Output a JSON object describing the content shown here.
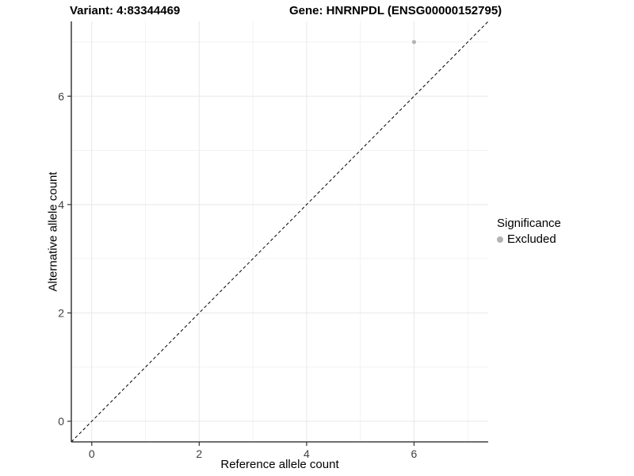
{
  "titles": {
    "variant": "Variant: 4:83344469",
    "gene": "Gene: HNRNPDL (ENSG00000152795)"
  },
  "chart_data": {
    "type": "scatter",
    "xlabel": "Reference allele count",
    "ylabel": "Alternative allele count",
    "xlim": [
      -0.38,
      7.38
    ],
    "ylim": [
      -0.38,
      7.38
    ],
    "xticks": [
      0,
      2,
      4,
      6
    ],
    "yticks": [
      0,
      2,
      4,
      6
    ],
    "minor_ticks": [
      1,
      3,
      5,
      7
    ],
    "grid": true,
    "points": [
      {
        "x": 6,
        "y": 7,
        "significance": "Excluded"
      }
    ],
    "reference_line": {
      "slope": 1,
      "intercept": 0,
      "style": "dashed"
    },
    "legend": {
      "title": "Significance",
      "position": "right",
      "items": [
        {
          "label": "Excluded",
          "color": "#b3b3b3"
        }
      ]
    },
    "colors": {
      "point": "#b3b3b3",
      "grid_major": "#e8e8e8",
      "grid_minor": "#f2f2f2",
      "axis_line": "#1a1a1a",
      "tick": "#333333",
      "tick_label": "#404040",
      "ref_line": "#000000"
    }
  }
}
